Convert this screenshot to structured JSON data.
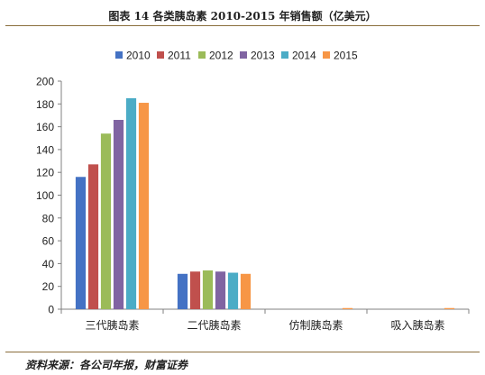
{
  "figure_title": "图表 14 各类胰岛素 2010-2015 年销售额（亿美元）",
  "source_note": "资料来源：各公司年报，财富证券",
  "colors": {
    "2010": "#4472C4",
    "2011": "#C0504D",
    "2012": "#9BBB59",
    "2013": "#8064A2",
    "2014": "#4BACC6",
    "2015": "#F79646"
  },
  "chart_data": {
    "type": "bar",
    "categories": [
      "三代胰岛素",
      "二代胰岛素",
      "仿制胰岛素",
      "吸入胰岛素"
    ],
    "series": [
      {
        "name": "2010",
        "values": [
          116,
          31,
          0,
          0
        ]
      },
      {
        "name": "2011",
        "values": [
          127,
          33,
          0,
          0
        ]
      },
      {
        "name": "2012",
        "values": [
          154,
          34,
          0,
          0
        ]
      },
      {
        "name": "2013",
        "values": [
          166,
          33,
          0,
          0
        ]
      },
      {
        "name": "2014",
        "values": [
          185,
          32,
          0,
          0
        ]
      },
      {
        "name": "2015",
        "values": [
          181,
          31,
          1,
          1
        ]
      }
    ],
    "ylim": [
      0,
      200
    ],
    "yticks": [
      "0",
      "20",
      "40",
      "60",
      "80",
      "100",
      "120",
      "140",
      "160",
      "180",
      "200"
    ],
    "legend_position": "top",
    "grid": false
  }
}
